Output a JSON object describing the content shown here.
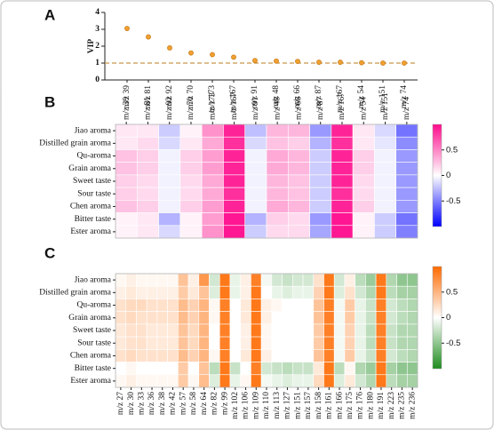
{
  "chart_data": [
    {
      "type": "dot",
      "label": "A",
      "y_label": "VIP",
      "categories": [
        "m/z 39",
        "m/z 81",
        "m/z 92",
        "m/z 70",
        "m/z 173",
        "m/z 167",
        "m/z 91",
        "m/z 48",
        "m/z 66",
        "m/z 87",
        "m/z 167",
        "m/z 54",
        "m/z 151",
        "m/z 74"
      ],
      "values": [
        3.05,
        2.55,
        1.9,
        1.6,
        1.5,
        1.35,
        1.15,
        1.12,
        1.1,
        1.05,
        1.05,
        1.02,
        1.0,
        1.0
      ],
      "color": "#f0a030",
      "ylim": [
        0,
        4
      ],
      "yticks": [
        0,
        1,
        2,
        3,
        4
      ],
      "reference_line": 1,
      "reference_color": "#c8964b"
    },
    {
      "type": "heatmap",
      "label": "B",
      "categories": [
        "m/z 39",
        "m/z 81",
        "m/z 92",
        "m/z 70",
        "m/z 173",
        "m/z 167",
        "m/z 91",
        "m/z 48",
        "m/z 66",
        "m/z 87",
        "m/z 167",
        "m/z 54",
        "m/z 151",
        "m/z 74"
      ],
      "rows": [
        "Jiao aroma",
        "Distilled grain aroma",
        "Qu-aroma",
        "Grain aroma",
        "Sweet taste",
        "Sour taste",
        "Chen aroma",
        "Bitter taste",
        "Ester aroma"
      ],
      "values": [
        [
          0.1,
          0.1,
          -0.2,
          0.05,
          0.45,
          0.9,
          -0.25,
          0.3,
          0.3,
          -0.4,
          0.9,
          0.1,
          -0.15,
          -0.55
        ],
        [
          0.1,
          0.15,
          -0.15,
          0.1,
          0.35,
          0.85,
          -0.15,
          0.25,
          0.2,
          -0.3,
          0.85,
          0.1,
          -0.1,
          -0.45
        ],
        [
          0.25,
          0.2,
          -0.05,
          0.2,
          0.4,
          0.9,
          -0.05,
          0.35,
          0.3,
          -0.2,
          0.9,
          0.2,
          -0.05,
          -0.4
        ],
        [
          0.25,
          0.2,
          -0.05,
          0.2,
          0.4,
          0.9,
          -0.05,
          0.35,
          0.3,
          -0.2,
          0.9,
          0.2,
          -0.05,
          -0.4
        ],
        [
          0.2,
          0.15,
          -0.05,
          0.15,
          0.35,
          0.9,
          -0.05,
          0.3,
          0.25,
          -0.2,
          0.9,
          0.15,
          -0.05,
          -0.4
        ],
        [
          0.2,
          0.15,
          -0.05,
          0.15,
          0.35,
          0.85,
          -0.05,
          0.3,
          0.25,
          -0.2,
          0.85,
          0.15,
          -0.05,
          -0.4
        ],
        [
          0.25,
          0.2,
          -0.05,
          0.2,
          0.4,
          0.9,
          -0.05,
          0.35,
          0.3,
          -0.2,
          0.9,
          0.2,
          -0.05,
          -0.4
        ],
        [
          0.05,
          0.1,
          -0.3,
          0.05,
          0.4,
          0.95,
          -0.3,
          0.2,
          0.15,
          -0.4,
          0.95,
          0.05,
          -0.2,
          -0.55
        ],
        [
          0.05,
          0.1,
          -0.15,
          0.05,
          0.45,
          0.95,
          -0.2,
          0.15,
          0.15,
          -0.35,
          0.95,
          0.05,
          -0.2,
          -0.5
        ]
      ],
      "zlim": [
        -1,
        1
      ],
      "zticks": [
        0.5,
        0,
        -0.5
      ],
      "colors": [
        "#0000ff",
        "#ffffff",
        "#ff0a8c"
      ]
    },
    {
      "type": "heatmap",
      "label": "C",
      "categories": [
        "m/z 27",
        "m/z 30",
        "m/z 33",
        "m/z 36",
        "m/z 38",
        "m/z 42",
        "m/z 57",
        "m/z 58",
        "m/z 64",
        "m/z 82",
        "m/z 99",
        "m/z 102",
        "m/z 106",
        "m/z 109",
        "m/z 110",
        "m/z 113",
        "m/z 127",
        "m/z 151",
        "m/z 157",
        "m/z 158",
        "m/z 161",
        "m/z 166",
        "m/z 175",
        "m/z 176",
        "m/z 180",
        "m/z 191",
        "m/z 223",
        "m/z 235",
        "m/z 236"
      ],
      "rows": [
        "Jiao aroma",
        "Distilled grain aroma",
        "Qu-aroma",
        "Grain aroma",
        "Sweet taste",
        "Sour taste",
        "Chen aroma",
        "Bitter taste",
        "Ester aroma"
      ],
      "values": [
        [
          0.05,
          0.1,
          0.05,
          0.05,
          0.05,
          0.05,
          0.4,
          0.1,
          0.7,
          -0.2,
          0.9,
          -0.1,
          0.1,
          0.85,
          -0.05,
          -0.2,
          -0.25,
          -0.2,
          -0.2,
          0.2,
          0.9,
          -0.2,
          0.1,
          -0.3,
          -0.45,
          0.9,
          -0.35,
          -0.5,
          -0.5
        ],
        [
          0.1,
          0.15,
          0.1,
          0.1,
          0.1,
          0.1,
          0.35,
          0.15,
          0.4,
          -0.15,
          0.9,
          -0.1,
          0.1,
          0.9,
          0,
          -0.1,
          -0.15,
          -0.1,
          -0.1,
          0.3,
          0.9,
          -0.15,
          0.2,
          -0.2,
          -0.35,
          0.9,
          -0.3,
          -0.4,
          -0.4
        ],
        [
          0.2,
          0.25,
          0.25,
          0.2,
          0.2,
          0.2,
          0.45,
          0.3,
          0.5,
          0.05,
          0.85,
          0,
          0.15,
          0.9,
          0.1,
          0.05,
          0,
          0,
          0,
          0.4,
          0.85,
          -0.05,
          0.35,
          -0.1,
          -0.25,
          0.85,
          -0.2,
          -0.3,
          -0.35
        ],
        [
          0.2,
          0.25,
          0.2,
          0.2,
          0.2,
          0.2,
          0.45,
          0.3,
          0.5,
          0.05,
          0.85,
          0,
          0.15,
          0.9,
          0.1,
          0,
          0,
          0,
          0,
          0.4,
          0.85,
          -0.05,
          0.35,
          -0.1,
          -0.25,
          0.85,
          -0.2,
          -0.3,
          -0.35
        ],
        [
          0.15,
          0.2,
          0.2,
          0.15,
          0.15,
          0.15,
          0.4,
          0.25,
          0.5,
          0,
          0.85,
          0,
          0.1,
          0.9,
          0.05,
          0,
          0,
          0,
          0,
          0.35,
          0.85,
          -0.05,
          0.3,
          -0.1,
          -0.3,
          0.85,
          -0.25,
          -0.35,
          -0.35
        ],
        [
          0.15,
          0.2,
          0.2,
          0.15,
          0.15,
          0.15,
          0.4,
          0.25,
          0.5,
          0,
          0.85,
          0,
          0.1,
          0.9,
          0.05,
          0,
          0,
          0,
          0,
          0.35,
          0.85,
          -0.05,
          0.3,
          -0.1,
          -0.3,
          0.85,
          -0.25,
          -0.35,
          -0.35
        ],
        [
          0.2,
          0.25,
          0.2,
          0.2,
          0.2,
          0.2,
          0.45,
          0.3,
          0.5,
          0.05,
          0.85,
          0,
          0.15,
          0.9,
          0.1,
          0,
          0,
          0,
          0,
          0.4,
          0.85,
          -0.05,
          0.35,
          -0.1,
          -0.25,
          0.85,
          -0.2,
          -0.3,
          -0.35
        ],
        [
          0,
          0.05,
          0,
          0,
          0,
          0,
          0.35,
          0,
          0.4,
          -0.3,
          0.9,
          -0.25,
          0,
          0.85,
          -0.2,
          -0.25,
          -0.3,
          -0.25,
          -0.25,
          0.15,
          0.9,
          -0.3,
          0.05,
          -0.35,
          -0.45,
          0.9,
          -0.4,
          -0.5,
          -0.5
        ],
        [
          0.05,
          0.1,
          0.05,
          0.05,
          0.05,
          0.05,
          0.35,
          0.05,
          0.45,
          -0.15,
          0.9,
          -0.1,
          0.05,
          0.9,
          -0.05,
          -0.1,
          -0.15,
          -0.1,
          -0.1,
          0.25,
          0.9,
          -0.15,
          0.15,
          -0.2,
          -0.35,
          0.9,
          -0.3,
          -0.4,
          -0.4
        ]
      ],
      "zlim": [
        -1,
        1
      ],
      "zticks": [
        0.5,
        0,
        -0.5
      ],
      "colors": [
        "#1e8c1e",
        "#ffffff",
        "#ff6a00"
      ]
    }
  ]
}
